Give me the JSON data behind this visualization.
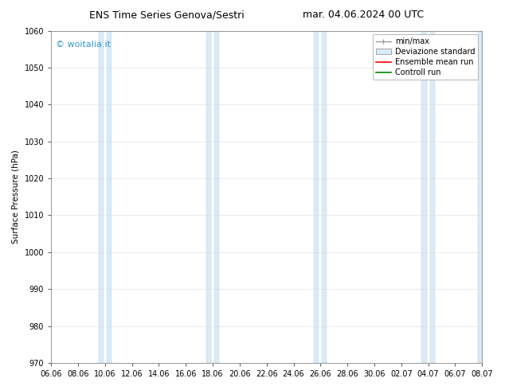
{
  "title_left": "ENS Time Series Genova/Sestri",
  "title_right": "mar. 04.06.2024 00 UTC",
  "ylabel": "Surface Pressure (hPa)",
  "ylim": [
    970,
    1060
  ],
  "yticks": [
    970,
    980,
    990,
    1000,
    1010,
    1020,
    1030,
    1040,
    1050,
    1060
  ],
  "xlabels": [
    "06.06",
    "08.06",
    "10.06",
    "12.06",
    "14.06",
    "16.06",
    "18.06",
    "20.06",
    "22.06",
    "24.06",
    "26.06",
    "28.06",
    "30.06",
    "02.07",
    "04.07",
    "06.07",
    "08.07"
  ],
  "background_color": "#ffffff",
  "plot_bg_color": "#ffffff",
  "band_color": "#daeaf7",
  "band_edge_color": "#b8d4ea",
  "watermark": "© woitalia.it",
  "watermark_color": "#3399cc",
  "legend_items": [
    "min/max",
    "Deviazione standard",
    "Ensemble mean run",
    "Controll run"
  ],
  "title_fontsize": 9,
  "axis_fontsize": 7.5,
  "tick_fontsize": 7,
  "legend_fontsize": 7
}
